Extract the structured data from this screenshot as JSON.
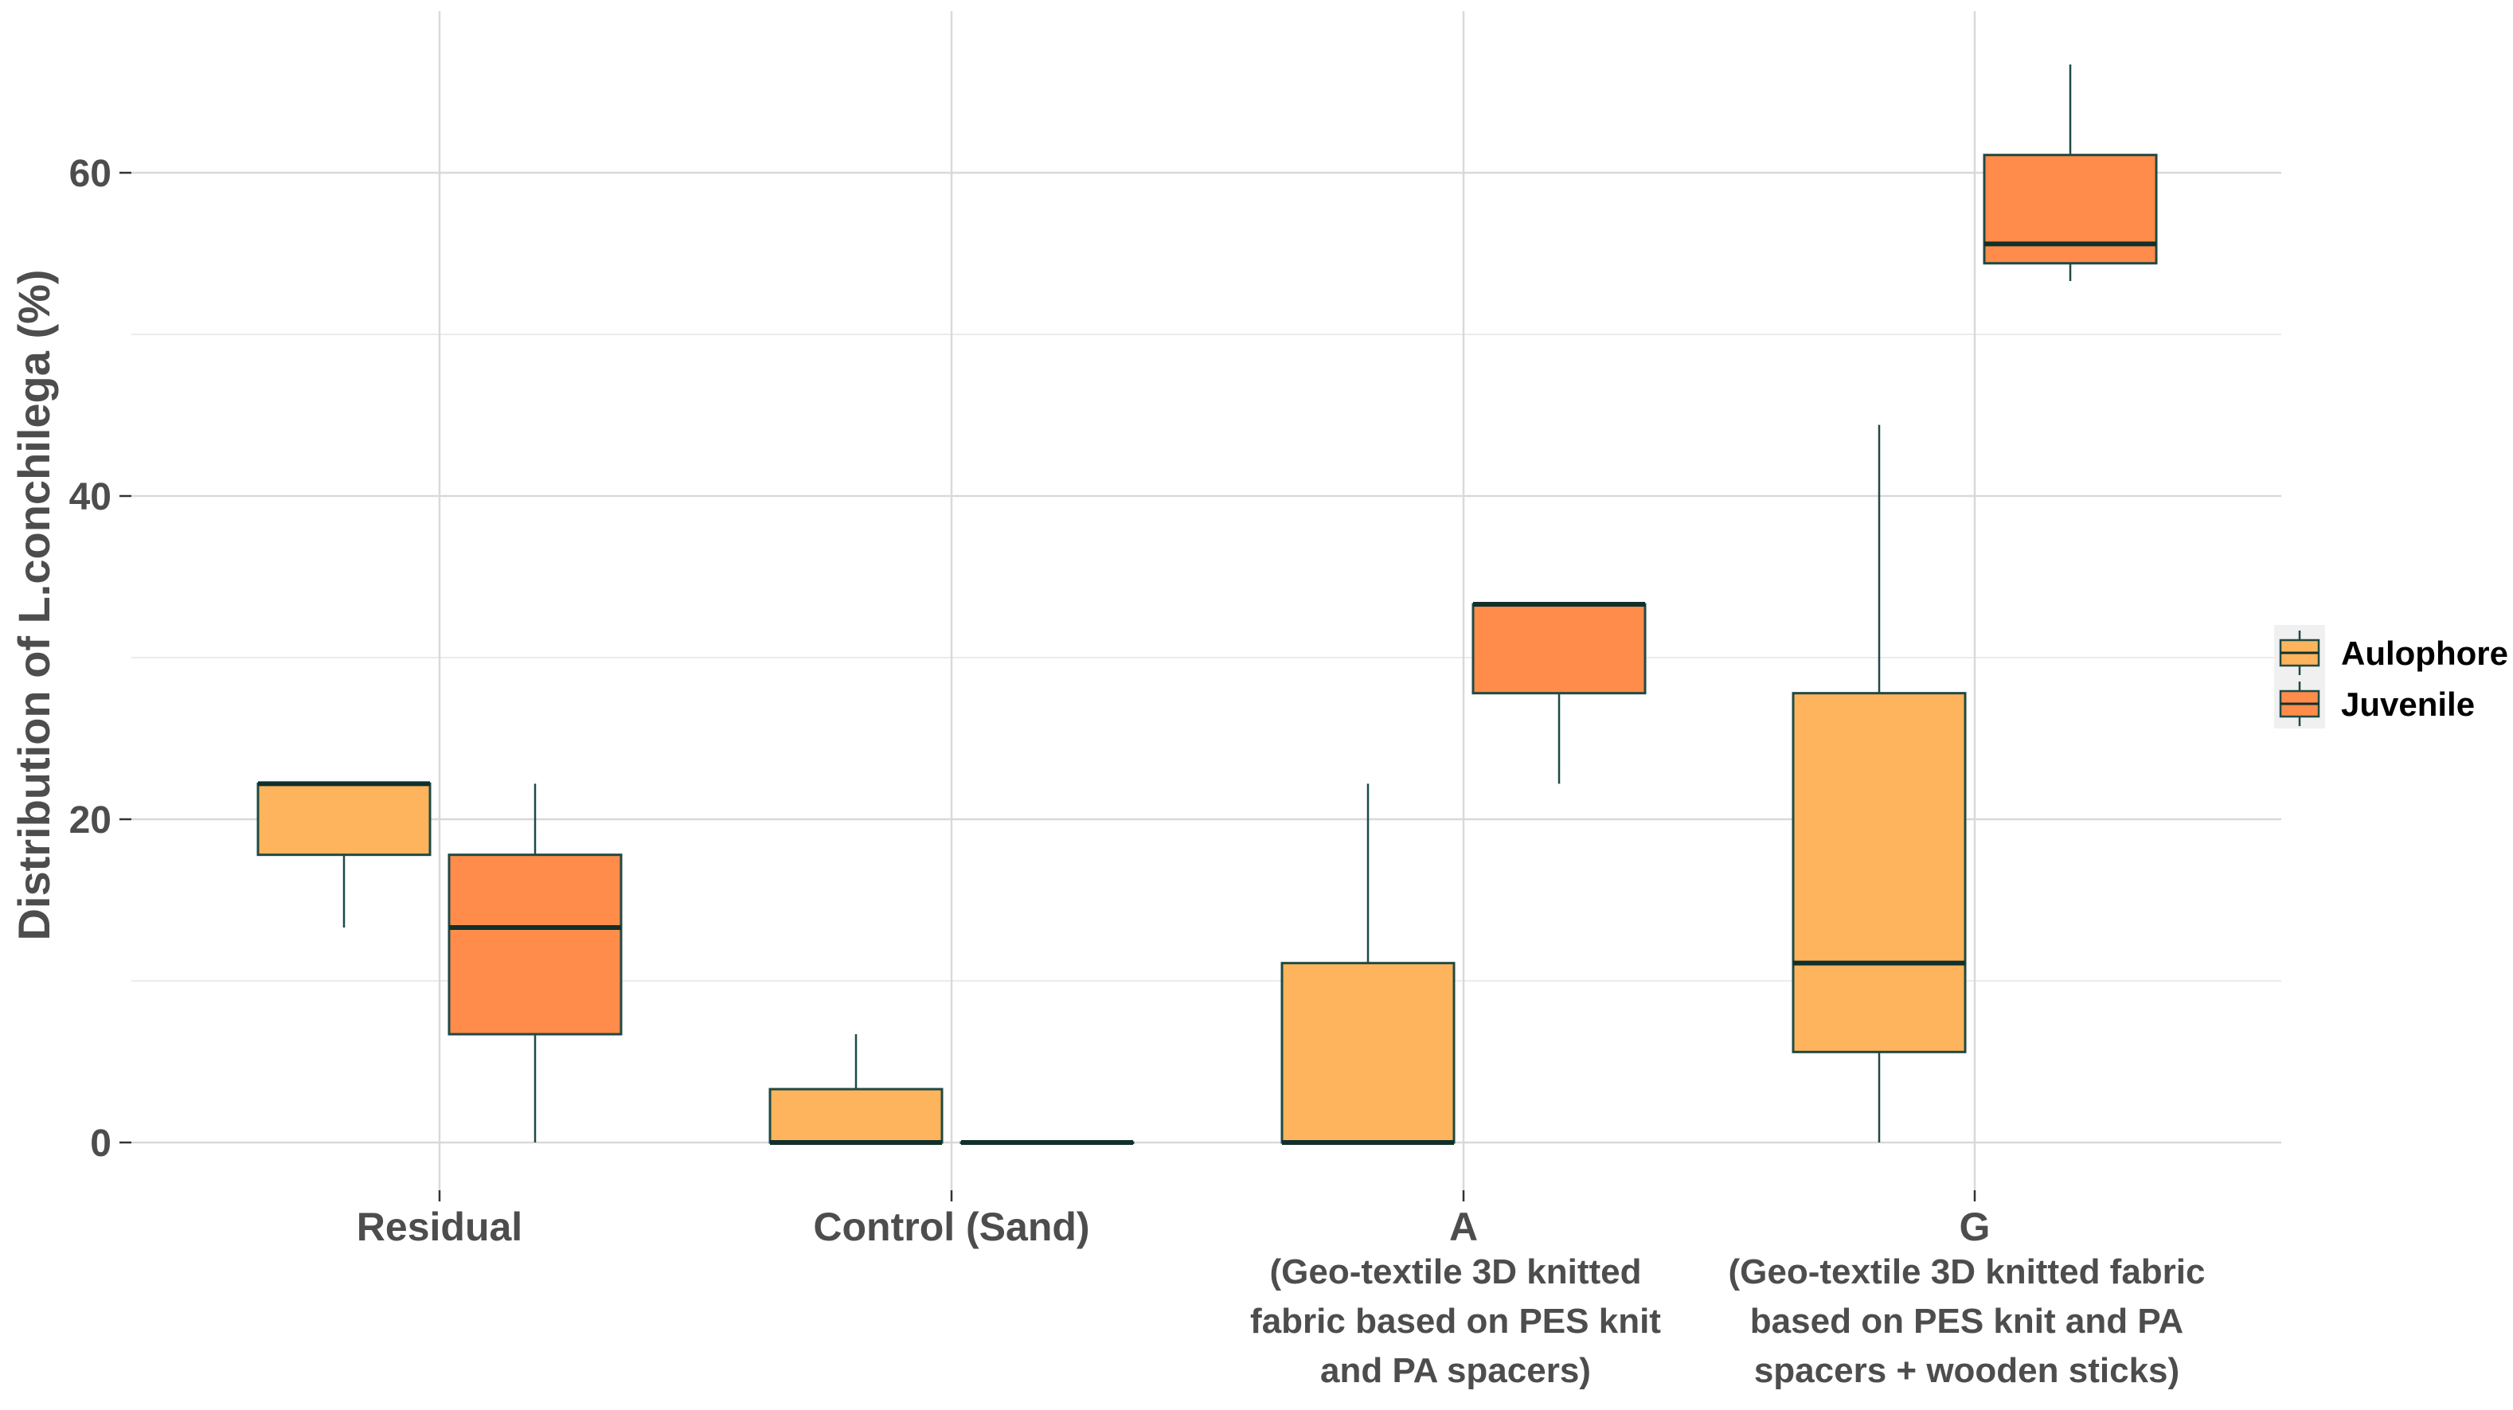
{
  "chart_data": {
    "type": "boxplot",
    "title": "",
    "xlabel": "",
    "ylabel": "Distribution of L.conchilega (%)",
    "ylim": [
      -6,
      70
    ],
    "yticks": [
      0,
      20,
      40,
      60
    ],
    "grid": true,
    "legend": {
      "position": "right",
      "entries": [
        {
          "name": "Aulophore",
          "color": "#FDB45C"
        },
        {
          "name": "Juvenile",
          "color": "#FF8C4A"
        }
      ]
    },
    "categories": [
      {
        "name": "Residual",
        "subtitle": []
      },
      {
        "name": "Control (Sand)",
        "subtitle": []
      },
      {
        "name": "A",
        "subtitle": [
          "(Geo-textile 3D knitted",
          "fabric based on PES knit",
          "and PA spacers)"
        ]
      },
      {
        "name": "G",
        "subtitle": [
          "(Geo-textile 3D knitted fabric",
          "based on PES knit and PA",
          "spacers + wooden sticks)"
        ]
      }
    ],
    "series": [
      {
        "name": "Aulophore",
        "color": "#FDB45C",
        "boxes": [
          {
            "min": 13.3,
            "q1": 17.8,
            "median": 22.2,
            "q3": 22.2,
            "max": 22.2
          },
          {
            "min": 0,
            "q1": 0,
            "median": 0,
            "q3": 3.3,
            "max": 6.7
          },
          {
            "min": 0,
            "q1": 0,
            "median": 0,
            "q3": 11.1,
            "max": 22.2
          },
          {
            "min": 0,
            "q1": 5.6,
            "median": 11.1,
            "q3": 27.8,
            "max": 44.4
          }
        ]
      },
      {
        "name": "Juvenile",
        "color": "#FF8C4A",
        "boxes": [
          {
            "min": 0,
            "q1": 6.7,
            "median": 13.3,
            "q3": 17.8,
            "max": 22.2
          },
          {
            "min": 0,
            "q1": 0,
            "median": 0,
            "q3": 0,
            "max": 0
          },
          {
            "min": 22.2,
            "q1": 27.8,
            "median": 33.3,
            "q3": 33.3,
            "max": 33.3
          },
          {
            "min": 53.3,
            "q1": 54.4,
            "median": 55.6,
            "q3": 61.1,
            "max": 66.7
          }
        ]
      }
    ],
    "colors": {
      "box_stroke": "#1F4A45",
      "median_stroke": "#10302C",
      "grid_major": "#D9D9D9",
      "grid_minor": "#EBEBEB",
      "text": "#4D4D4D",
      "legend_text": "#000000"
    }
  }
}
